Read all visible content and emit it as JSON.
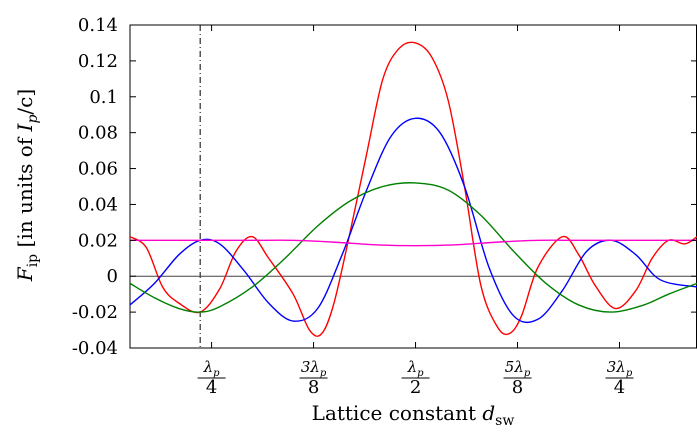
{
  "chart_data": {
    "type": "line",
    "title": "",
    "xlabel": "Lattice constant d_sw",
    "xlabel_main": "Lattice constant ",
    "xlabel_var": "d",
    "xlabel_sub": "sw",
    "ylabel_main": "[in units of ",
    "ylabel_I": "I",
    "ylabel_p": "p",
    "ylabel_tail": "/c]",
    "ylabel_F": "F",
    "ylabel_ip": "ip",
    "x_unit": "λ_p",
    "xlim": [
      0.15,
      0.845
    ],
    "ylim": [
      -0.04,
      0.14
    ],
    "grid": false,
    "legend": "none",
    "y_ticks": [
      {
        "v": 0.14,
        "label": "0.14"
      },
      {
        "v": 0.12,
        "label": "0.12"
      },
      {
        "v": 0.1,
        "label": "0.1"
      },
      {
        "v": 0.08,
        "label": "0.08"
      },
      {
        "v": 0.06,
        "label": "0.06"
      },
      {
        "v": 0.04,
        "label": "0.04"
      },
      {
        "v": 0.02,
        "label": "0.02"
      },
      {
        "v": 0.0,
        "label": "0"
      },
      {
        "v": -0.02,
        "label": "-0.02"
      },
      {
        "v": -0.04,
        "label": "-0.04"
      }
    ],
    "x_ticks": [
      {
        "v": 0.25,
        "num": "λ",
        "num_sub": "p",
        "den": "4"
      },
      {
        "v": 0.375,
        "num": "3λ",
        "num_sub": "p",
        "den": "8"
      },
      {
        "v": 0.5,
        "num": "λ",
        "num_sub": "p",
        "den": "2"
      },
      {
        "v": 0.625,
        "num": "5λ",
        "num_sub": "p",
        "den": "8"
      },
      {
        "v": 0.75,
        "num": "3λ",
        "num_sub": "p",
        "den": "4"
      }
    ],
    "reference_lines": [
      {
        "type": "vertical",
        "x": 0.236,
        "style": "dash-dot"
      },
      {
        "type": "horizontal",
        "y": 0,
        "style": "solid"
      }
    ],
    "series": [
      {
        "color": "#ff0000",
        "x": [
          0.15,
          0.17,
          0.19,
          0.21,
          0.236,
          0.26,
          0.28,
          0.3,
          0.32,
          0.35,
          0.37,
          0.385,
          0.4,
          0.42,
          0.44,
          0.46,
          0.48,
          0.5,
          0.52,
          0.54,
          0.56,
          0.58,
          0.6,
          0.615,
          0.63,
          0.65,
          0.68,
          0.7,
          0.72,
          0.745,
          0.77,
          0.79,
          0.81,
          0.83,
          0.845
        ],
        "y": [
          0.022,
          0.016,
          -0.006,
          -0.015,
          -0.02,
          -0.007,
          0.014,
          0.022,
          0.01,
          -0.01,
          -0.03,
          -0.032,
          -0.015,
          0.025,
          0.068,
          0.11,
          0.127,
          0.13,
          0.122,
          0.098,
          0.05,
          -0.005,
          -0.028,
          -0.032,
          -0.022,
          0.005,
          0.022,
          0.012,
          -0.005,
          -0.018,
          -0.008,
          0.01,
          0.02,
          0.018,
          0.022
        ]
      },
      {
        "color": "#0000ff",
        "x": [
          0.15,
          0.18,
          0.21,
          0.236,
          0.26,
          0.29,
          0.32,
          0.35,
          0.38,
          0.41,
          0.44,
          0.47,
          0.5,
          0.53,
          0.56,
          0.59,
          0.62,
          0.65,
          0.68,
          0.71,
          0.74,
          0.77,
          0.8,
          0.845
        ],
        "y": [
          -0.016,
          -0.004,
          0.012,
          0.02,
          0.018,
          0.003,
          -0.015,
          -0.025,
          -0.018,
          0.012,
          0.048,
          0.078,
          0.088,
          0.08,
          0.05,
          0.005,
          -0.022,
          -0.024,
          -0.008,
          0.014,
          0.02,
          0.012,
          -0.002,
          -0.006
        ]
      },
      {
        "color": "#008000",
        "x": [
          0.15,
          0.18,
          0.21,
          0.236,
          0.26,
          0.3,
          0.34,
          0.38,
          0.42,
          0.46,
          0.5,
          0.54,
          0.58,
          0.62,
          0.66,
          0.7,
          0.74,
          0.78,
          0.81,
          0.845
        ],
        "y": [
          -0.004,
          -0.012,
          -0.018,
          -0.02,
          -0.017,
          -0.006,
          0.01,
          0.028,
          0.042,
          0.05,
          0.052,
          0.048,
          0.034,
          0.014,
          -0.004,
          -0.016,
          -0.02,
          -0.016,
          -0.01,
          -0.004
        ]
      },
      {
        "color": "#ff00cc",
        "x": [
          0.15,
          0.2,
          0.25,
          0.3,
          0.35,
          0.4,
          0.45,
          0.5,
          0.55,
          0.6,
          0.65,
          0.7,
          0.75,
          0.8,
          0.845
        ],
        "y": [
          0.02,
          0.02,
          0.02,
          0.02,
          0.02,
          0.019,
          0.0175,
          0.017,
          0.0175,
          0.019,
          0.02,
          0.02,
          0.02,
          0.02,
          0.02
        ]
      }
    ]
  }
}
